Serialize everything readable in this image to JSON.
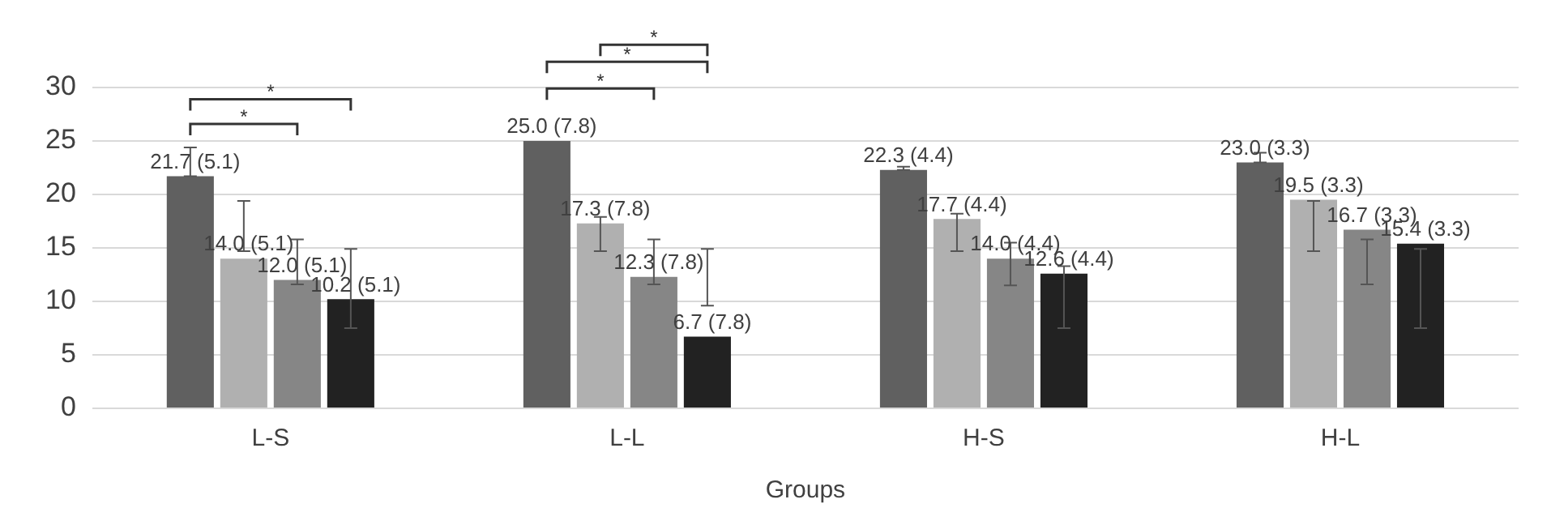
{
  "chart_data": {
    "type": "bar",
    "xlabel": "Groups",
    "categories": [
      "L-S",
      "L-L",
      "H-S",
      "H-L"
    ],
    "series": [
      {
        "color": "#606060",
        "values": [
          21.7,
          25.0,
          22.3,
          23.0
        ],
        "value_labels": [
          "21.7 (5.1)",
          "25.0 (7.8)",
          "22.3 (4.4)",
          "23.0 (3.3)"
        ],
        "errors": [
          [
            21.7,
            24.4
          ],
          null,
          [
            22.3,
            22.6
          ],
          [
            23.0,
            23.9
          ]
        ]
      },
      {
        "color": "#b0b0b0",
        "values": [
          14.0,
          17.3,
          17.7,
          19.5
        ],
        "value_labels": [
          "14.0 (5.1)",
          "17.3 (7.8)",
          "17.7 (4.4)",
          "19.5 (3.3)"
        ],
        "errors": [
          [
            14.7,
            19.4
          ],
          [
            14.7,
            17.9
          ],
          [
            14.7,
            18.2
          ],
          [
            14.7,
            19.4
          ]
        ]
      },
      {
        "color": "#868686",
        "values": [
          12.0,
          12.3,
          14.0,
          16.7
        ],
        "value_labels": [
          "12.0 (5.1)",
          "12.3 (7.8)",
          "14.0 (4.4)",
          "16.7 (3.3)"
        ],
        "errors": [
          [
            11.6,
            15.8
          ],
          [
            11.6,
            15.8
          ],
          [
            11.5,
            15.5
          ],
          [
            11.6,
            15.8
          ]
        ]
      },
      {
        "color": "#222222",
        "values": [
          10.2,
          6.7,
          12.6,
          15.4
        ],
        "value_labels": [
          "10.2 (5.1)",
          "6.7 (7.8)",
          "12.6 (4.4)",
          "15.4 (3.3)"
        ],
        "errors": [
          [
            7.5,
            14.9
          ],
          [
            9.6,
            14.9
          ],
          [
            7.5,
            13.3
          ],
          [
            7.5,
            14.9
          ]
        ]
      }
    ],
    "ylim": [
      0,
      30
    ],
    "yticks": [
      0,
      5,
      10,
      15,
      20,
      25,
      30
    ],
    "grid": "y",
    "legend": false,
    "annotations": [
      "*",
      "*",
      "*",
      "*",
      "*"
    ]
  }
}
